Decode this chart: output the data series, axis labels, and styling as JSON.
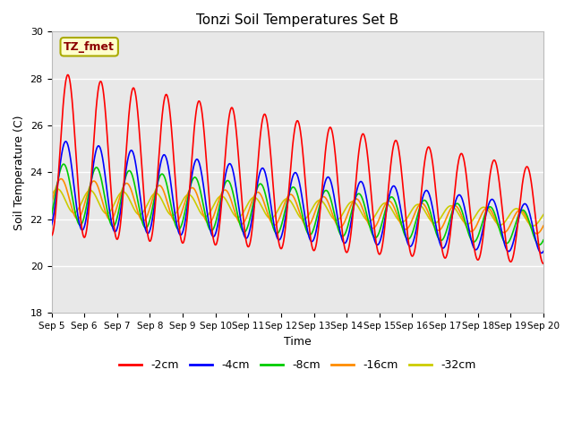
{
  "title": "Tonzi Soil Temperatures Set B",
  "xlabel": "Time",
  "ylabel": "Soil Temperature (C)",
  "ylim": [
    18,
    30
  ],
  "xtick_labels": [
    "Sep 5",
    "Sep 6",
    "Sep 7",
    "Sep 8",
    "Sep 9",
    "Sep 10",
    "Sep 11",
    "Sep 12",
    "Sep 13",
    "Sep 14",
    "Sep 15",
    "Sep 16",
    "Sep 17",
    "Sep 18",
    "Sep 19",
    "Sep 20"
  ],
  "ytick_labels": [
    18,
    20,
    22,
    24,
    26,
    28,
    30
  ],
  "annotation_text": "TZ_fmet",
  "annotation_color": "#8B0000",
  "annotation_bg": "#FFFFCC",
  "annotation_border": "#AAAA00",
  "series": {
    "-2cm": {
      "color": "#FF0000",
      "linewidth": 1.2
    },
    "-4cm": {
      "color": "#0000FF",
      "linewidth": 1.2
    },
    "-8cm": {
      "color": "#00CC00",
      "linewidth": 1.2
    },
    "-16cm": {
      "color": "#FF8C00",
      "linewidth": 1.2
    },
    "-32cm": {
      "color": "#CCCC00",
      "linewidth": 1.2
    }
  },
  "bg_color": "#E8E8E8",
  "fig_bg": "#FFFFFF",
  "grid_color": "#FFFFFF"
}
